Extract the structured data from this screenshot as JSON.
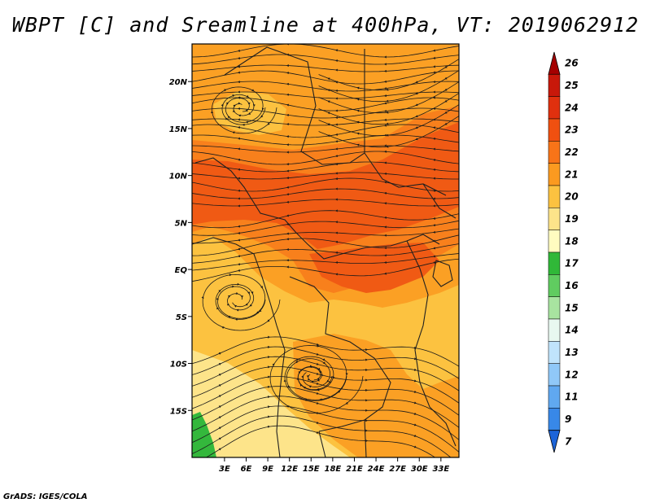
{
  "title": "WBPT [C] and Sreamline at 400hPa, VT: 2019062912",
  "credit": "GrADS: IGES/COLA",
  "map": {
    "lat_range": [
      -20,
      24
    ],
    "lon_range": [
      -1.5,
      35.5
    ],
    "lat_ticks": [
      {
        "value": 20,
        "label": "20N"
      },
      {
        "value": 15,
        "label": "15N"
      },
      {
        "value": 10,
        "label": "10N"
      },
      {
        "value": 5,
        "label": "5N"
      },
      {
        "value": 0,
        "label": "EQ"
      },
      {
        "value": -5,
        "label": "5S"
      },
      {
        "value": -10,
        "label": "10S"
      },
      {
        "value": -15,
        "label": "15S"
      }
    ],
    "lon_ticks": [
      {
        "value": 3,
        "label": "3E"
      },
      {
        "value": 6,
        "label": "6E"
      },
      {
        "value": 9,
        "label": "9E"
      },
      {
        "value": 12,
        "label": "12E"
      },
      {
        "value": 15,
        "label": "15E"
      },
      {
        "value": 18,
        "label": "18E"
      },
      {
        "value": 21,
        "label": "21E"
      },
      {
        "value": 24,
        "label": "24E"
      },
      {
        "value": 27,
        "label": "27E"
      },
      {
        "value": 30,
        "label": "30E"
      },
      {
        "value": 33,
        "label": "33E"
      }
    ]
  },
  "colorbar": {
    "labels": [
      "26",
      "25",
      "24",
      "23",
      "22",
      "21",
      "20",
      "19",
      "18",
      "17",
      "16",
      "15",
      "14",
      "13",
      "12",
      "11",
      "9",
      "7"
    ],
    "colors": [
      "#a50000",
      "#c8180a",
      "#e0300e",
      "#f05010",
      "#f87418",
      "#fb9a20",
      "#fcc240",
      "#fde48a",
      "#fffcc0",
      "#30b838",
      "#60cc60",
      "#a8e4a0",
      "#e8f8f0",
      "#c0e4fc",
      "#90c8f8",
      "#60a8f0",
      "#3888e8",
      "#1c64d8"
    ]
  },
  "field_colors": {
    "wbpt_19": "#fde48a",
    "wbpt_20": "#fcc240",
    "wbpt_21": "#fba024",
    "wbpt_22": "#f8801c",
    "wbpt_23": "#f05a14",
    "wbpt_17": "#34b83c"
  }
}
